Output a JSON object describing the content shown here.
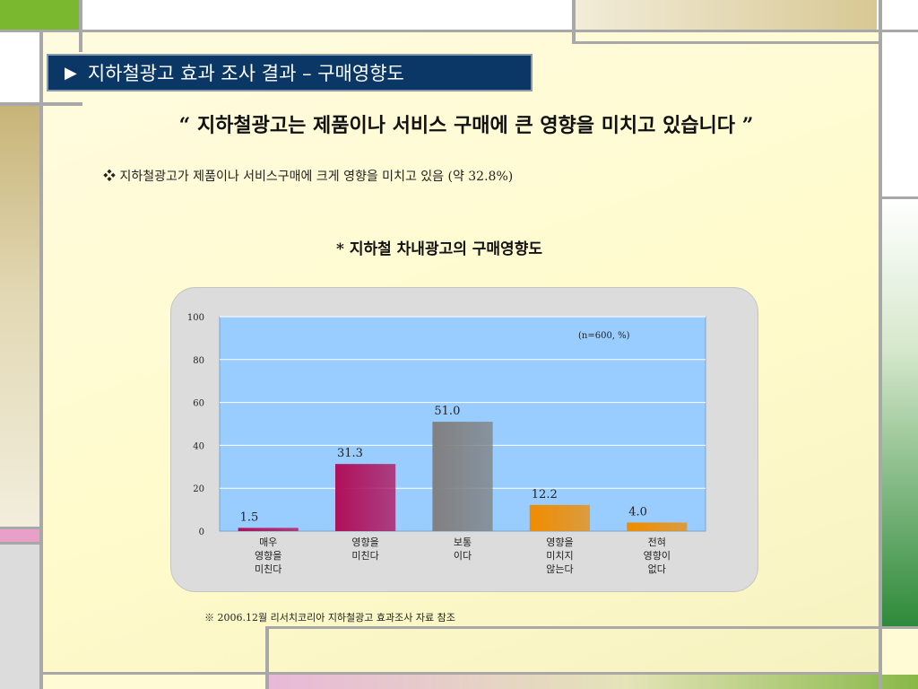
{
  "slide": {
    "title_arrow": "▶",
    "title": "지하철광고 효과 조사 결과 – 구매영향도",
    "headline": "“ 지하철광고는 제품이나 서비스 구매에 큰 영향을 미치고 있습니다 ”",
    "bullet_icon": "diamond-bullet-icon",
    "bullet_symbol": "❖",
    "bullet_text": "지하철광고가 제품이나 서비스구매에 크게 영향을 미치고 있음 (약 32.8%)",
    "source_note": "※ 2006.12월 리서치코리아 지하철광고 효과조사 자료 참조"
  },
  "colors": {
    "title_bg": "#0a3766",
    "plot_bg": "#99ccff",
    "panel_bg": "#dcdcdc",
    "accent_green": "#7ab830",
    "accent_pink": "#e8a0c8"
  },
  "chart_data": {
    "type": "bar",
    "title": "* 지하철 차내광고의 구매영향도",
    "annotation": "(n=600, %)",
    "categories": [
      [
        "매우",
        "영향을",
        "미친다"
      ],
      [
        "영향을",
        "미친다"
      ],
      [
        "보통",
        "이다"
      ],
      [
        "영향을",
        "미치지",
        "않는다"
      ],
      [
        "전혀",
        "영향이",
        "없다"
      ]
    ],
    "values": [
      1.5,
      31.3,
      51.0,
      12.2,
      4.0
    ],
    "value_labels": [
      "1.5",
      "31.3",
      "51.0",
      "12.2",
      "4.0"
    ],
    "bar_colors": [
      "#b0105a",
      "#b0105a",
      "#808080",
      "#f08c00",
      "#f08c00"
    ],
    "ylim": [
      0,
      100
    ],
    "yticks": [
      0,
      20,
      40,
      60,
      80,
      100
    ],
    "grid": true,
    "xlabel": "",
    "ylabel": ""
  }
}
